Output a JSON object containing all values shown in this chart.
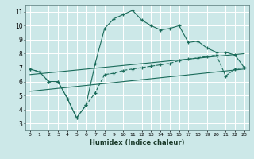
{
  "xlabel": "Humidex (Indice chaleur)",
  "x_ticks": [
    0,
    1,
    2,
    3,
    4,
    5,
    6,
    7,
    8,
    9,
    10,
    11,
    12,
    13,
    14,
    15,
    16,
    17,
    18,
    19,
    20,
    21,
    22,
    23
  ],
  "y_ticks": [
    3,
    4,
    5,
    6,
    7,
    8,
    9,
    10,
    11
  ],
  "xlim": [
    -0.5,
    23.5
  ],
  "ylim": [
    2.5,
    11.5
  ],
  "bg_color": "#cce8e8",
  "line_color": "#1a6b5a",
  "grid_color": "#ffffff",
  "curve1_x": [
    0,
    1,
    2,
    3,
    4,
    5,
    6,
    7,
    8,
    9,
    10,
    11,
    12,
    13,
    14,
    15,
    16,
    17,
    18,
    19,
    20,
    21,
    22,
    23
  ],
  "curve1_y": [
    6.9,
    6.7,
    6.0,
    6.0,
    4.8,
    3.4,
    4.3,
    7.3,
    9.8,
    10.5,
    10.8,
    11.1,
    10.4,
    10.0,
    9.7,
    9.8,
    10.0,
    8.8,
    8.9,
    8.4,
    8.1,
    8.1,
    7.9,
    7.0
  ],
  "curve2_x": [
    0,
    1,
    2,
    3,
    4,
    5,
    6,
    7,
    8,
    9,
    10,
    11,
    12,
    13,
    14,
    15,
    16,
    17,
    18,
    19,
    20,
    21,
    22,
    23
  ],
  "curve2_y": [
    6.9,
    6.7,
    6.0,
    6.0,
    4.8,
    3.4,
    4.3,
    5.2,
    6.5,
    6.6,
    6.8,
    6.9,
    7.0,
    7.1,
    7.2,
    7.3,
    7.5,
    7.6,
    7.7,
    7.8,
    7.9,
    6.4,
    6.9,
    7.0
  ],
  "trend1_x": [
    0,
    23
  ],
  "trend1_y": [
    6.5,
    8.0
  ],
  "trend2_x": [
    0,
    23
  ],
  "trend2_y": [
    5.3,
    6.9
  ]
}
